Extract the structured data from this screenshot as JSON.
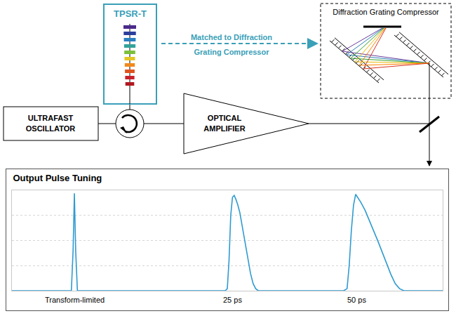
{
  "diagram": {
    "tpsr": "TPSR-T",
    "link_label": [
      "Matched to Diffraction",
      "Grating Compressor"
    ],
    "compressor": "Diffraction Grating Compressor",
    "oscillator": [
      "ULTRAFAST",
      "OSCILLATOR"
    ],
    "amplifier": [
      "OPTICAL",
      "AMPLIFIER"
    ]
  },
  "chart_data": {
    "type": "line",
    "title": "Output Pulse Tuning",
    "color": "#2f9bd0",
    "x": [
      0,
      13.8,
      14.2,
      14.5,
      14.8,
      15.2,
      49.5,
      50,
      50.4,
      50.8,
      51.2,
      51.6,
      52,
      52.4,
      52.9,
      53.4,
      53.9,
      54.4,
      54.9,
      55.4,
      56,
      56.6,
      57.2,
      77,
      77.8,
      78.3,
      78.8,
      79.3,
      79.8,
      80.3,
      81,
      82,
      83,
      84,
      85,
      86,
      87,
      88,
      89,
      90,
      91,
      100
    ],
    "values": [
      0,
      0,
      0.4,
      0.97,
      0.4,
      0,
      0,
      0.02,
      0.3,
      0.75,
      0.93,
      0.95,
      0.91,
      0.86,
      0.78,
      0.66,
      0.52,
      0.4,
      0.28,
      0.17,
      0.07,
      0.02,
      0,
      0,
      0.02,
      0.25,
      0.6,
      0.85,
      0.96,
      0.93,
      0.88,
      0.8,
      0.7,
      0.6,
      0.49,
      0.38,
      0.27,
      0.16,
      0.07,
      0.02,
      0,
      0
    ],
    "xlim": [
      0,
      100
    ],
    "ylim": [
      0,
      1
    ],
    "yticks": [
      0,
      0.25,
      0.5,
      0.75,
      1
    ],
    "grid": true,
    "tick_labels": false,
    "annotations": [
      {
        "x": 14.5,
        "text": "Transform-limited"
      },
      {
        "x": 51.3,
        "text": "25 ps"
      },
      {
        "x": 80,
        "text": "50 ps"
      }
    ]
  }
}
